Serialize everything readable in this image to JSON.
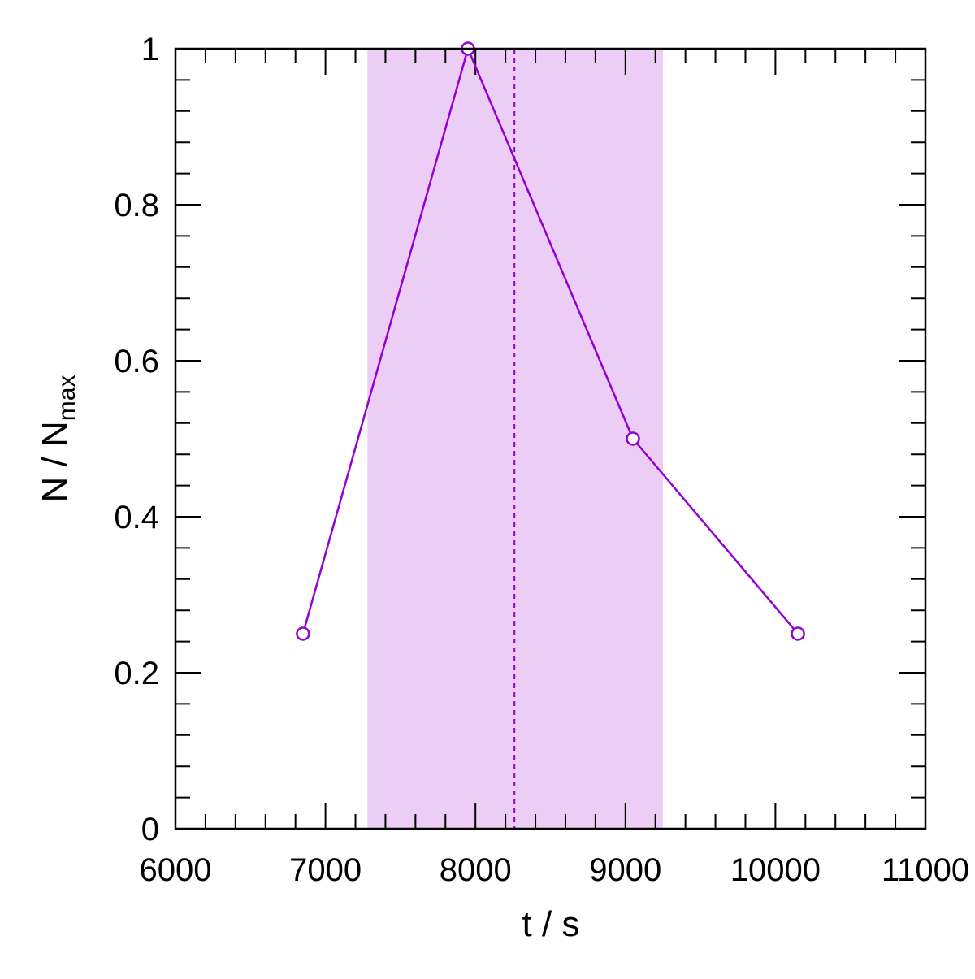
{
  "chart_data": {
    "type": "line",
    "title": "",
    "xlabel": "t / s",
    "ylabel": {
      "main": "N / N",
      "subscript": "max"
    },
    "xlim": [
      6000,
      11000
    ],
    "ylim": [
      0,
      1
    ],
    "x_ticks": [
      6000,
      7000,
      8000,
      9000,
      10000,
      11000
    ],
    "x_tick_labels": [
      "6000",
      "7000",
      "8000",
      "9000",
      "10000",
      "11000"
    ],
    "y_ticks": [
      0,
      0.2,
      0.4,
      0.6,
      0.8,
      1
    ],
    "y_tick_labels": [
      "0",
      "0.2",
      "0.4",
      "0.6",
      "0.8",
      "1"
    ],
    "x_minor_step": 200,
    "y_minor_step": 0.04,
    "grid": false,
    "legend": "none",
    "series": [
      {
        "x": [
          6850,
          7950,
          9050,
          10150
        ],
        "y": [
          0.25,
          1.0,
          0.5,
          0.25
        ],
        "color": "#9400D3",
        "marker": "open-circle"
      }
    ],
    "shaded_band": {
      "x": [
        7280,
        9250
      ],
      "color": "#EBCDF5"
    },
    "reference_line": {
      "x": 8260,
      "style": "dashed",
      "color": "#9400D3"
    }
  }
}
